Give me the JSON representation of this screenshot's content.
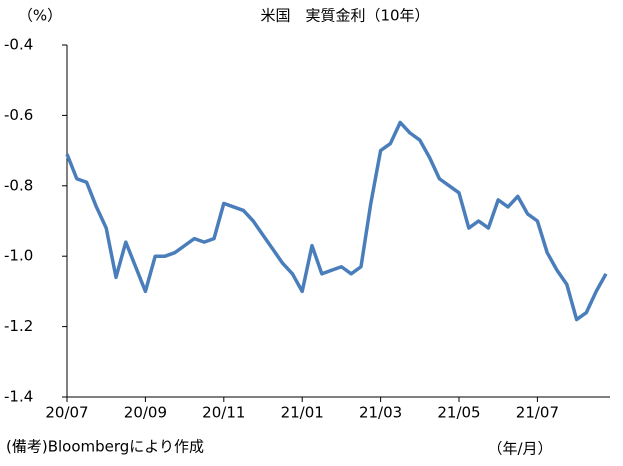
{
  "chart_data": {
    "type": "line",
    "title": "米国　実質金利（10年）",
    "y_unit": "（%）",
    "x_unit": "（年/月）",
    "note": "(備考)Bloombergにより作成",
    "categories": [
      "20/07",
      null,
      null,
      null,
      null,
      null,
      null,
      null,
      "20/09",
      null,
      null,
      null,
      null,
      null,
      null,
      null,
      "20/11",
      null,
      null,
      null,
      null,
      null,
      null,
      null,
      "21/01",
      null,
      null,
      null,
      null,
      null,
      null,
      null,
      "21/03",
      null,
      null,
      null,
      null,
      null,
      null,
      null,
      "21/05",
      null,
      null,
      null,
      null,
      null,
      null,
      null,
      "21/07",
      null,
      null,
      null,
      null,
      null,
      null,
      null
    ],
    "series": [
      {
        "color": "#4a7ebb",
        "values": [
          -0.71,
          -0.78,
          -0.79,
          -0.86,
          -0.92,
          -1.06,
          -0.96,
          -1.03,
          -1.1,
          -1.0,
          -1.0,
          -0.99,
          -0.97,
          -0.95,
          -0.96,
          -0.95,
          -0.85,
          -0.86,
          -0.87,
          -0.9,
          -0.94,
          -0.98,
          -1.02,
          -1.05,
          -1.1,
          -0.97,
          -1.05,
          -1.04,
          -1.03,
          -1.05,
          -1.03,
          -0.85,
          -0.7,
          -0.68,
          -0.62,
          -0.65,
          -0.67,
          -0.72,
          -0.78,
          -0.8,
          -0.82,
          -0.92,
          -0.9,
          -0.92,
          -0.84,
          -0.86,
          -0.83,
          -0.88,
          -0.9,
          -0.99,
          -1.04,
          -1.08,
          -1.18,
          -1.16,
          -1.1,
          -1.05
        ]
      }
    ],
    "ylim": [
      -1.4,
      -0.4
    ],
    "yticks": [
      {
        "value": -1.4,
        "label": "-1.4"
      },
      {
        "value": -1.2,
        "label": "-1.2"
      },
      {
        "value": -1,
        "label": "-1.0"
      },
      {
        "value": -0.8,
        "label": "-0.8"
      },
      {
        "value": -0.6,
        "label": "-0.6"
      },
      {
        "value": -0.4,
        "label": "-0.4"
      }
    ],
    "grid": false
  }
}
